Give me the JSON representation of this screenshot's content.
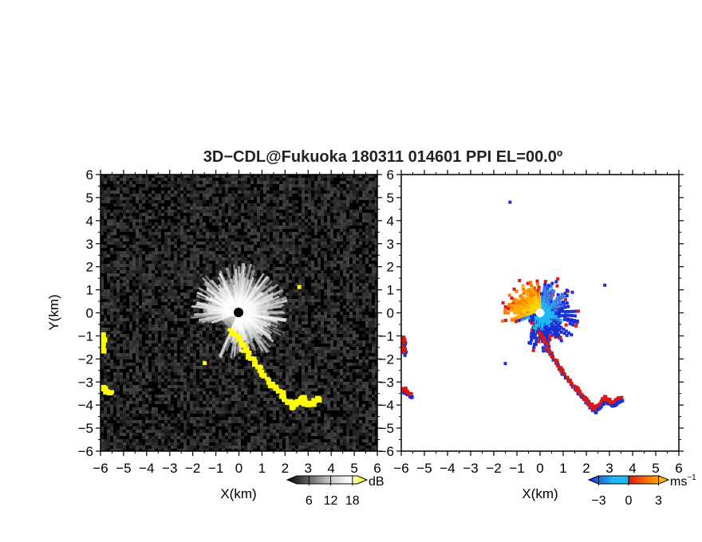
{
  "figure": {
    "title": "3D−CDL@Fukuoka 180311 014601 PPI EL=00.0º"
  },
  "chart_data": [
    {
      "type": "heatmap",
      "panel": "left",
      "xlabel": "X(km)",
      "ylabel": "Y(km)",
      "xlim": [
        -6,
        6
      ],
      "ylim": [
        -6,
        6
      ],
      "xticks": [
        "−6",
        "−5",
        "−4",
        "−3",
        "−2",
        "−1",
        "0",
        "1",
        "2",
        "3",
        "4",
        "5",
        "6"
      ],
      "yticks": [
        "−6",
        "−5",
        "−4",
        "−3",
        "−2",
        "−1",
        "0",
        "1",
        "2",
        "3",
        "4",
        "5",
        "6"
      ],
      "colorbar": {
        "unit": "dB",
        "ticks": [
          "6",
          "12",
          "18"
        ],
        "tick_values": [
          6,
          12,
          18
        ],
        "range": [
          0,
          22
        ],
        "colors": [
          "#000000",
          "#ffffff",
          "#ffff00"
        ]
      },
      "background": "#000000",
      "echo_color": "#ffff00",
      "features": {
        "near_field_radius_km": 2.2,
        "strong_echoes": [
          {
            "name": "band-south",
            "points": [
              [
                -0.4,
                -0.7
              ],
              [
                0.2,
                -1.5
              ],
              [
                0.8,
                -2.4
              ],
              [
                1.4,
                -3.1
              ],
              [
                1.9,
                -3.6
              ],
              [
                2.3,
                -4.1
              ],
              [
                2.7,
                -3.7
              ],
              [
                3.0,
                -4.0
              ],
              [
                3.4,
                -3.7
              ]
            ]
          },
          {
            "name": "edge-west",
            "points": [
              [
                -5.9,
                -1.0
              ],
              [
                -5.85,
                -1.6
              ]
            ]
          },
          {
            "name": "edge-southwest",
            "points": [
              [
                -5.9,
                -3.2
              ],
              [
                -5.6,
                -3.5
              ]
            ]
          },
          {
            "name": "spot-northeast",
            "points": [
              [
                2.6,
                1.1
              ]
            ]
          },
          {
            "name": "spot-southwest",
            "points": [
              [
                -1.5,
                -2.2
              ]
            ]
          }
        ]
      }
    },
    {
      "type": "heatmap",
      "panel": "right",
      "xlabel": "X(km)",
      "ylabel": "",
      "xlim": [
        -6,
        6
      ],
      "ylim": [
        -6,
        6
      ],
      "xticks": [
        "−6",
        "−5",
        "−4",
        "−3",
        "−2",
        "−1",
        "0",
        "1",
        "2",
        "3",
        "4",
        "5",
        "6"
      ],
      "yticks": [
        "−6",
        "−5",
        "−4",
        "−3",
        "−2",
        "−1",
        "0",
        "1",
        "2",
        "3",
        "4",
        "5",
        "6"
      ],
      "colorbar": {
        "unit": "ms",
        "unit_exponent": "−1",
        "ticks": [
          "−3",
          "0",
          "3"
        ],
        "tick_values": [
          -3,
          0,
          3
        ],
        "range": [
          -4,
          4
        ],
        "colors": [
          "#1a2fd6",
          "#1fb8f2",
          "#d41a1a",
          "#ffd400"
        ]
      },
      "background": "#ffffff",
      "features": {
        "near_field_radius_km": 1.8,
        "approaching_sector_deg": [
          200,
          20
        ],
        "receding_sector_deg": [
          20,
          200
        ],
        "edge_bands": [
          {
            "name": "band-south",
            "points": [
              [
                0,
                -0.9
              ],
              [
                0.5,
                -1.8
              ],
              [
                1.0,
                -2.6
              ],
              [
                1.6,
                -3.3
              ],
              [
                2.0,
                -3.8
              ],
              [
                2.4,
                -4.2
              ],
              [
                2.8,
                -3.7
              ],
              [
                3.1,
                -3.9
              ],
              [
                3.5,
                -3.7
              ]
            ]
          },
          {
            "name": "edge-west",
            "points": [
              [
                -5.9,
                -1.1
              ],
              [
                -5.85,
                -1.7
              ]
            ]
          },
          {
            "name": "edge-southwest",
            "points": [
              [
                -5.9,
                -3.3
              ],
              [
                -5.6,
                -3.6
              ]
            ]
          }
        ],
        "spots": [
          [
            -1.3,
            4.8
          ],
          [
            -1.5,
            -2.2
          ],
          [
            2.8,
            1.2
          ]
        ]
      }
    }
  ]
}
